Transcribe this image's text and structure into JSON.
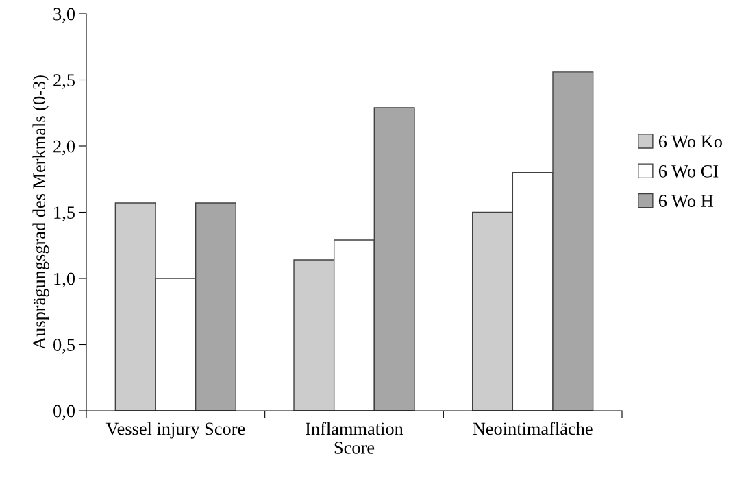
{
  "chart_data": {
    "type": "bar",
    "ylabel": "Ausprägungsgrad des Merkmals (0-3)",
    "categories": [
      "Vessel injury Score",
      "Inflammation\nScore",
      "Neointimafläche"
    ],
    "series": [
      {
        "name": "6 Wo Ko",
        "color": "#cccccc",
        "values": [
          1.57,
          1.14,
          1.5
        ]
      },
      {
        "name": "6 Wo CI",
        "color": "#ffffff",
        "values": [
          1.0,
          1.29,
          1.8
        ]
      },
      {
        "name": "6 Wo H",
        "color": "#a6a6a6",
        "values": [
          1.57,
          2.29,
          2.56
        ]
      }
    ],
    "ylim": [
      0,
      3
    ],
    "yticks": [
      {
        "value": 0,
        "label": "0,0"
      },
      {
        "value": 0.5,
        "label": "0,5"
      },
      {
        "value": 1,
        "label": "1,0"
      },
      {
        "value": 1.5,
        "label": "1,5"
      },
      {
        "value": 2,
        "label": "2,0"
      },
      {
        "value": 2.5,
        "label": "2,5"
      },
      {
        "value": 3,
        "label": "3,0"
      }
    ],
    "grid": false,
    "legend": "right"
  }
}
